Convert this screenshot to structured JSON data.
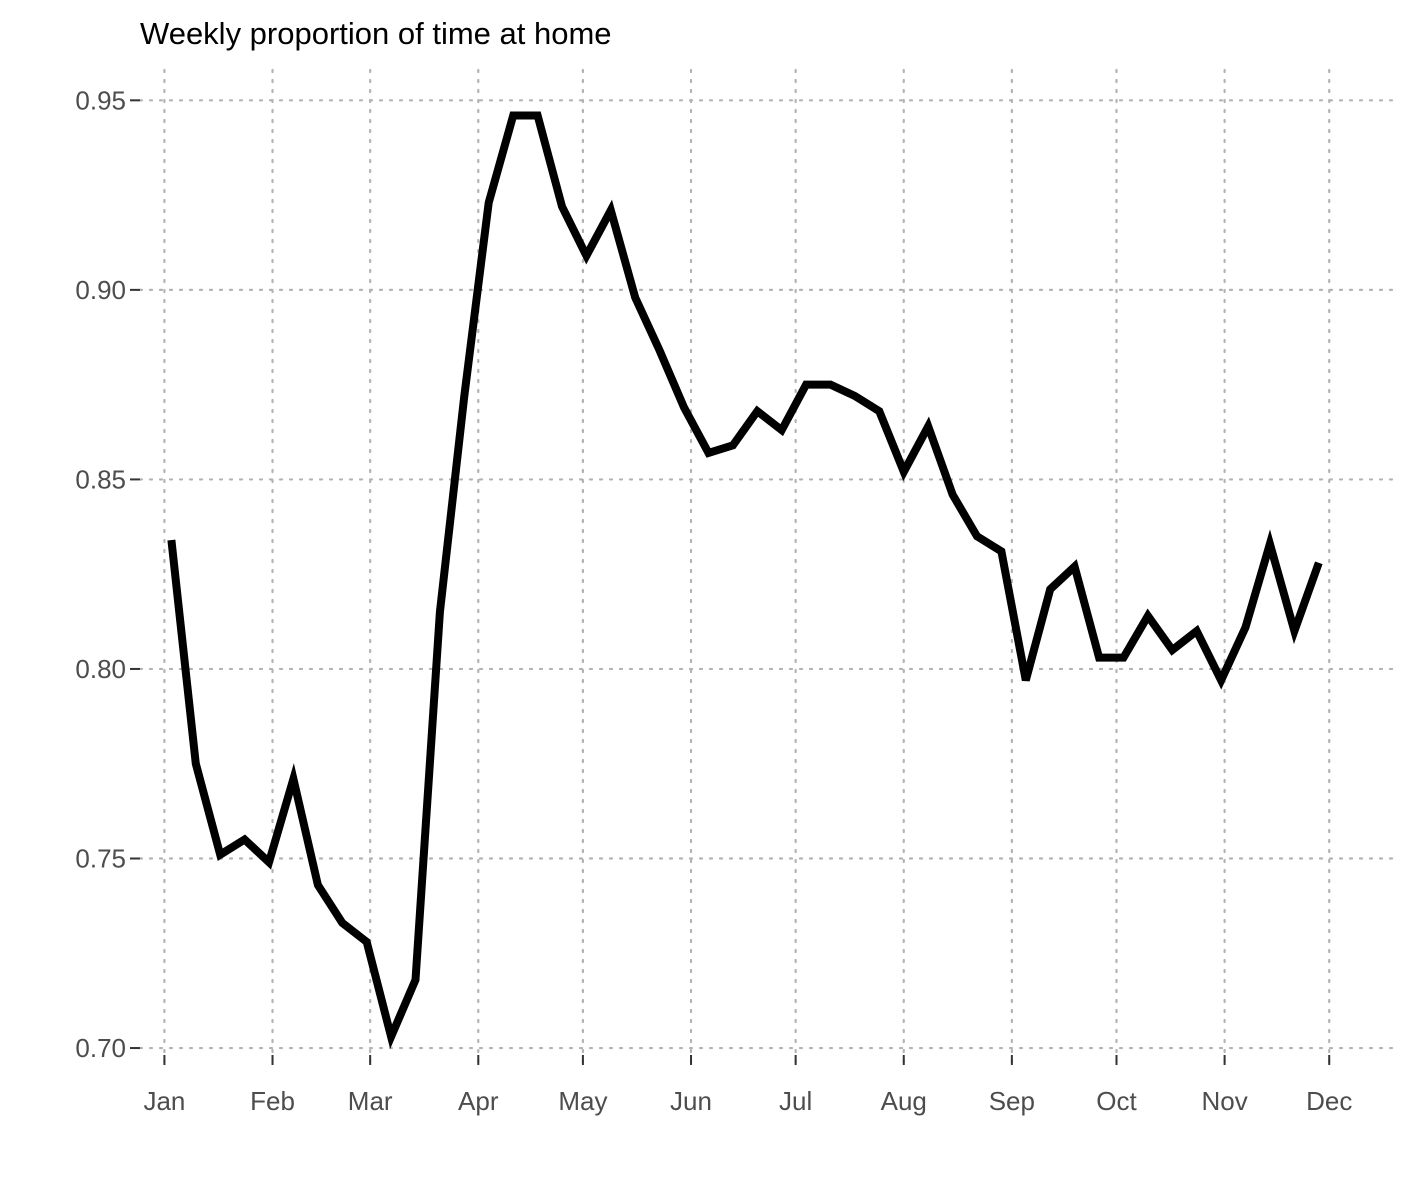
{
  "chart_data": {
    "type": "line",
    "title": "Weekly proportion of time at home",
    "xlabel": "",
    "ylabel": "",
    "grid": true,
    "legend": "none",
    "ylim": [
      0.695,
      0.958
    ],
    "xlim_days": [
      -7,
      352
    ],
    "x_ticks": [
      {
        "label": "Jan",
        "day": 0
      },
      {
        "label": "Feb",
        "day": 31
      },
      {
        "label": "Mar",
        "day": 59
      },
      {
        "label": "Apr",
        "day": 90
      },
      {
        "label": "May",
        "day": 120
      },
      {
        "label": "Jun",
        "day": 151
      },
      {
        "label": "Jul",
        "day": 181
      },
      {
        "label": "Aug",
        "day": 212
      },
      {
        "label": "Sep",
        "day": 243
      },
      {
        "label": "Oct",
        "day": 273
      },
      {
        "label": "Nov",
        "day": 304
      },
      {
        "label": "Dec",
        "day": 334
      }
    ],
    "y_ticks": [
      {
        "label": "0.95",
        "value": 0.95
      },
      {
        "label": "0.90",
        "value": 0.9
      },
      {
        "label": "0.85",
        "value": 0.85
      },
      {
        "label": "0.80",
        "value": 0.8
      },
      {
        "label": "0.75",
        "value": 0.75
      },
      {
        "label": "0.70",
        "value": 0.7
      }
    ],
    "series": [
      {
        "name": "proportion_at_home",
        "color": "#000000",
        "x_days": [
          2,
          9,
          16,
          23,
          30,
          37,
          44,
          51,
          58,
          65,
          72,
          79,
          86,
          93,
          100,
          107,
          114,
          121,
          128,
          135,
          142,
          149,
          156,
          163,
          170,
          177,
          184,
          191,
          198,
          205,
          212,
          219,
          226,
          233,
          240,
          247,
          254,
          261,
          268,
          275,
          282,
          289,
          296,
          303,
          310,
          317,
          324,
          331
        ],
        "values": [
          0.834,
          0.775,
          0.751,
          0.755,
          0.749,
          0.771,
          0.743,
          0.733,
          0.728,
          0.703,
          0.718,
          0.815,
          0.872,
          0.923,
          0.946,
          0.946,
          0.922,
          0.909,
          0.921,
          0.898,
          0.884,
          0.869,
          0.857,
          0.859,
          0.868,
          0.863,
          0.875,
          0.875,
          0.872,
          0.868,
          0.852,
          0.864,
          0.846,
          0.835,
          0.831,
          0.797,
          0.821,
          0.827,
          0.803,
          0.803,
          0.814,
          0.805,
          0.81,
          0.797,
          0.811,
          0.833,
          0.81,
          0.828
        ]
      }
    ]
  }
}
